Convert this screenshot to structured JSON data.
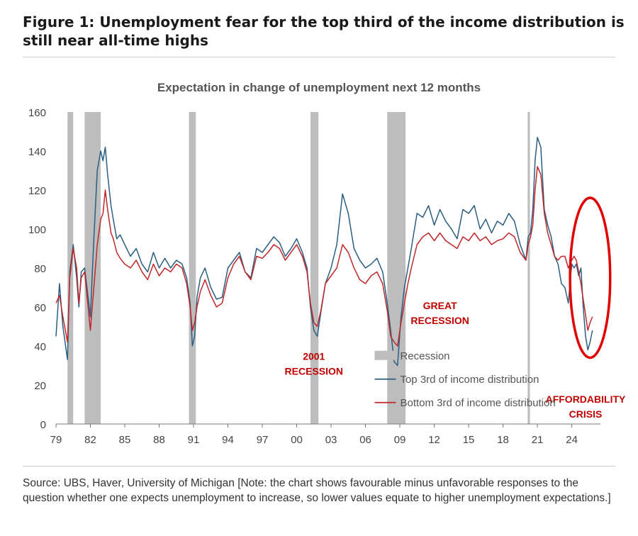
{
  "figure": {
    "title": "Figure 1: Unemployment fear for the top third of the income distribution is still near all-time highs",
    "source": "Source: UBS, Haver, University of Michigan [Note: the chart shows favourable minus unfavorable responses to the question whether one expects unemployment to increase, so lower values equate to higher unemployment expectations.]"
  },
  "chart_data": {
    "type": "line",
    "title": "Expectation in change of unemployment next 12 months",
    "xlabel": "",
    "ylabel": "",
    "xlim": [
      1979,
      2026.5
    ],
    "ylim": [
      0,
      160
    ],
    "yticks": [
      0,
      20,
      40,
      60,
      80,
      100,
      120,
      140,
      160
    ],
    "xticks": [
      {
        "x": 1979,
        "label": "79"
      },
      {
        "x": 1982,
        "label": "82"
      },
      {
        "x": 1985,
        "label": "85"
      },
      {
        "x": 1988,
        "label": "88"
      },
      {
        "x": 1991,
        "label": "91"
      },
      {
        "x": 1994,
        "label": "94"
      },
      {
        "x": 1997,
        "label": "97"
      },
      {
        "x": 2000,
        "label": "00"
      },
      {
        "x": 2003,
        "label": "03"
      },
      {
        "x": 2006,
        "label": "06"
      },
      {
        "x": 2009,
        "label": "09"
      },
      {
        "x": 2012,
        "label": "12"
      },
      {
        "x": 2015,
        "label": "15"
      },
      {
        "x": 2018,
        "label": "18"
      },
      {
        "x": 2021,
        "label": "21"
      },
      {
        "x": 2024,
        "label": "24"
      }
    ],
    "grid": false,
    "legend": {
      "placement": "bottom-center",
      "entries": [
        {
          "label": "Recession",
          "kind": "bar",
          "color": "#bdbdbd"
        },
        {
          "label": "Top 3rd of income distribution",
          "kind": "line",
          "color": "#2b5f82"
        },
        {
          "label": "Bottom 3rd of income distribution",
          "kind": "line",
          "color": "#c0282b"
        }
      ]
    },
    "recessions": [
      {
        "start": 1980.0,
        "end": 1980.5
      },
      {
        "start": 1981.5,
        "end": 1982.9
      },
      {
        "start": 1990.6,
        "end": 1991.2
      },
      {
        "start": 2001.2,
        "end": 2001.9
      },
      {
        "start": 2007.9,
        "end": 2009.5
      },
      {
        "start": 2020.15,
        "end": 2020.35
      }
    ],
    "annotations": [
      {
        "text": "2001\nRECESSION",
        "x": 2001.5,
        "y": 33,
        "color": "#c00000"
      },
      {
        "text": "GREAT\nRECESSION",
        "x": 2012.5,
        "y": 59,
        "color": "#c00000"
      },
      {
        "text": "AFFORDABILITY\nCRISIS",
        "x": 2025.2,
        "y": 11,
        "color": "#c00000"
      }
    ],
    "highlight_ellipse": {
      "cx": 2025.6,
      "cy": 75,
      "rx": 1.75,
      "ry": 41,
      "color": "#e00000"
    },
    "series": [
      {
        "name": "Top 3rd of income distribution",
        "color": "#2b5f82",
        "x": [
          1979.0,
          1979.3,
          1979.6,
          1980.0,
          1980.2,
          1980.5,
          1980.8,
          1981.0,
          1981.2,
          1981.5,
          1981.8,
          1982.0,
          1982.3,
          1982.6,
          1982.9,
          1983.1,
          1983.3,
          1983.5,
          1983.8,
          1984.0,
          1984.3,
          1984.6,
          1985.0,
          1985.5,
          1986.0,
          1986.5,
          1987.0,
          1987.5,
          1988.0,
          1988.5,
          1989.0,
          1989.5,
          1990.0,
          1990.4,
          1990.7,
          1990.9,
          1991.1,
          1991.3,
          1991.6,
          1992.0,
          1992.5,
          1993.0,
          1993.5,
          1994.0,
          1994.5,
          1995.0,
          1995.5,
          1996.0,
          1996.5,
          1997.0,
          1997.5,
          1998.0,
          1998.5,
          1999.0,
          1999.5,
          2000.0,
          2000.5,
          2000.9,
          2001.2,
          2001.5,
          2001.8,
          2002.1,
          2002.5,
          2003.0,
          2003.5,
          2004.0,
          2004.5,
          2005.0,
          2005.5,
          2006.0,
          2006.5,
          2007.0,
          2007.5,
          2007.9,
          2008.2,
          2008.5,
          2008.8,
          2009.1,
          2009.4,
          2009.7,
          2010.0,
          2010.5,
          2011.0,
          2011.5,
          2012.0,
          2012.5,
          2013.0,
          2013.5,
          2014.0,
          2014.5,
          2015.0,
          2015.5,
          2016.0,
          2016.5,
          2017.0,
          2017.5,
          2018.0,
          2018.5,
          2019.0,
          2019.5,
          2020.0,
          2020.2,
          2020.4,
          2020.6,
          2020.8,
          2021.0,
          2021.3,
          2021.6,
          2021.9,
          2022.2,
          2022.5,
          2022.8,
          2023.1,
          2023.4,
          2023.7,
          2024.0,
          2024.2,
          2024.4,
          2024.6,
          2024.8,
          2025.0,
          2025.2,
          2025.4,
          2025.6,
          2025.8
        ],
        "values": [
          45,
          72,
          50,
          33,
          78,
          92,
          75,
          60,
          78,
          80,
          65,
          55,
          95,
          130,
          140,
          135,
          142,
          128,
          112,
          105,
          95,
          97,
          92,
          86,
          90,
          82,
          78,
          88,
          80,
          85,
          80,
          84,
          82,
          75,
          62,
          40,
          45,
          65,
          75,
          80,
          70,
          64,
          65,
          80,
          84,
          88,
          78,
          75,
          90,
          88,
          92,
          96,
          93,
          86,
          90,
          95,
          88,
          80,
          60,
          48,
          45,
          57,
          72,
          80,
          92,
          118,
          108,
          90,
          84,
          80,
          82,
          85,
          78,
          62,
          48,
          32,
          30,
          55,
          70,
          80,
          90,
          108,
          106,
          112,
          102,
          110,
          104,
          100,
          95,
          110,
          108,
          112,
          100,
          105,
          98,
          104,
          102,
          108,
          104,
          92,
          84,
          96,
          98,
          110,
          135,
          147,
          142,
          110,
          102,
          96,
          86,
          82,
          72,
          70,
          62,
          82,
          80,
          82,
          76,
          80,
          60,
          45,
          38,
          42,
          48
        ]
      },
      {
        "name": "Bottom 3rd of income distribution",
        "color": "#c0282b",
        "x": [
          1979.0,
          1979.3,
          1979.6,
          1980.0,
          1980.2,
          1980.5,
          1980.8,
          1981.0,
          1981.2,
          1981.5,
          1981.8,
          1982.0,
          1982.3,
          1982.6,
          1982.9,
          1983.1,
          1983.3,
          1983.5,
          1983.8,
          1984.0,
          1984.3,
          1984.6,
          1985.0,
          1985.5,
          1986.0,
          1986.5,
          1987.0,
          1987.5,
          1988.0,
          1988.5,
          1989.0,
          1989.5,
          1990.0,
          1990.4,
          1990.7,
          1990.9,
          1991.1,
          1991.3,
          1991.6,
          1992.0,
          1992.5,
          1993.0,
          1993.5,
          1994.0,
          1994.5,
          1995.0,
          1995.5,
          1996.0,
          1996.5,
          1997.0,
          1997.5,
          1998.0,
          1998.5,
          1999.0,
          1999.5,
          2000.0,
          2000.5,
          2000.9,
          2001.2,
          2001.5,
          2001.8,
          2002.1,
          2002.5,
          2003.0,
          2003.5,
          2004.0,
          2004.5,
          2005.0,
          2005.5,
          2006.0,
          2006.5,
          2007.0,
          2007.5,
          2007.9,
          2008.2,
          2008.5,
          2008.8,
          2009.1,
          2009.4,
          2009.7,
          2010.0,
          2010.5,
          2011.0,
          2011.5,
          2012.0,
          2012.5,
          2013.0,
          2013.5,
          2014.0,
          2014.5,
          2015.0,
          2015.5,
          2016.0,
          2016.5,
          2017.0,
          2017.5,
          2018.0,
          2018.5,
          2019.0,
          2019.5,
          2020.0,
          2020.2,
          2020.4,
          2020.6,
          2020.8,
          2021.0,
          2021.3,
          2021.6,
          2021.9,
          2022.2,
          2022.5,
          2022.8,
          2023.1,
          2023.4,
          2023.7,
          2024.0,
          2024.2,
          2024.4,
          2024.6,
          2024.8,
          2025.0,
          2025.2,
          2025.4,
          2025.6,
          2025.8
        ],
        "values": [
          62,
          66,
          55,
          42,
          75,
          90,
          80,
          62,
          75,
          78,
          60,
          48,
          70,
          92,
          105,
          108,
          120,
          110,
          98,
          95,
          88,
          85,
          82,
          80,
          84,
          78,
          74,
          82,
          76,
          80,
          78,
          82,
          80,
          72,
          60,
          48,
          52,
          60,
          68,
          74,
          66,
          60,
          62,
          75,
          82,
          86,
          78,
          74,
          86,
          85,
          88,
          92,
          90,
          84,
          88,
          92,
          86,
          78,
          62,
          52,
          50,
          58,
          72,
          76,
          80,
          92,
          88,
          80,
          74,
          72,
          76,
          78,
          72,
          58,
          45,
          42,
          40,
          52,
          62,
          72,
          80,
          92,
          96,
          98,
          94,
          98,
          94,
          92,
          90,
          96,
          94,
          98,
          94,
          96,
          92,
          94,
          95,
          98,
          96,
          88,
          84,
          92,
          96,
          102,
          120,
          132,
          128,
          108,
          98,
          92,
          86,
          84,
          86,
          86,
          80,
          84,
          86,
          84,
          78,
          72,
          64,
          56,
          48,
          52,
          55
        ]
      }
    ]
  }
}
